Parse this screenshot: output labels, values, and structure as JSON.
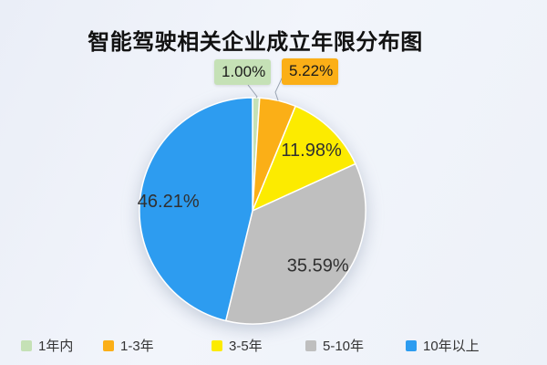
{
  "chart_data": {
    "type": "pie",
    "title": "智能驾驶相关企业成立年限分布图",
    "categories": [
      "1年内",
      "1-3年",
      "3-5年",
      "5-10年",
      "10年以上"
    ],
    "values": [
      1.0,
      5.22,
      11.98,
      35.59,
      46.21
    ],
    "labels": [
      "1.00%",
      "5.22%",
      "11.98%",
      "35.59%",
      "46.21%"
    ],
    "colors": [
      "#C5E1B6",
      "#FBAF17",
      "#FCEB00",
      "#BFBFBF",
      "#2D9CF0"
    ],
    "start_angle": 90,
    "clockwise": true,
    "legend_position": "bottom-left",
    "label_line_color": "#9aa4b2",
    "inside_label_color": "#303030",
    "slice_border_color": "#ffffff"
  }
}
